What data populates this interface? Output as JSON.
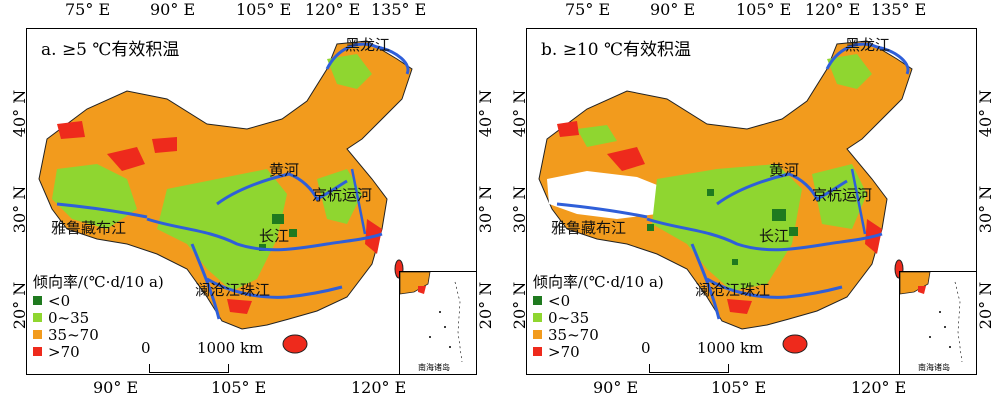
{
  "panels": [
    {
      "title": "a. ≥5 ℃有效积温",
      "top_ticks": [
        "75° E",
        "90° E",
        "105° E",
        "120° E",
        "135° E"
      ],
      "bottom_ticks": [
        "90° E",
        "105° E",
        "120° E"
      ],
      "left_ticks": [
        "40° N",
        "30° N",
        "20° N"
      ],
      "right_ticks": [
        "40° N",
        "30° N",
        "20° N"
      ],
      "rivers": {
        "heilongjiang": "黑龙江",
        "huanghe": "黄河",
        "jinghang": "京杭运河",
        "yarlung": "雅鲁藏布江",
        "changjiang": "长江",
        "lancang_zhujiang": "澜沧江珠江"
      }
    },
    {
      "title": "b. ≥10 ℃有效积温",
      "top_ticks": [
        "75° E",
        "90° E",
        "105° E",
        "120° E",
        "135° E"
      ],
      "bottom_ticks": [
        "90° E",
        "105° E",
        "120° E"
      ],
      "left_ticks": [
        "40° N",
        "30° N",
        "20° N"
      ],
      "right_ticks": [
        "40° N",
        "30° N",
        "20° N"
      ],
      "rivers": {
        "heilongjiang": "黑龙江",
        "huanghe": "黄河",
        "jinghang": "京杭运河",
        "yarlung": "雅鲁藏布江",
        "changjiang": "长江",
        "lancang_zhujiang": "澜沧江珠江"
      }
    }
  ],
  "legend": {
    "title": "倾向率/(℃·d/10 a)",
    "items": [
      {
        "label": "<0",
        "color": "#1f7a1f"
      },
      {
        "label": "0~35",
        "color": "#8fd630"
      },
      {
        "label": "35~70",
        "color": "#f29b1d"
      },
      {
        "label": ">70",
        "color": "#ee2a1c"
      }
    ]
  },
  "scale": {
    "zero": "0",
    "distance": "1000 km"
  },
  "inset_label": "南海诸岛",
  "colors": {
    "river": "#2f5fd9",
    "boundary": "#222222"
  }
}
